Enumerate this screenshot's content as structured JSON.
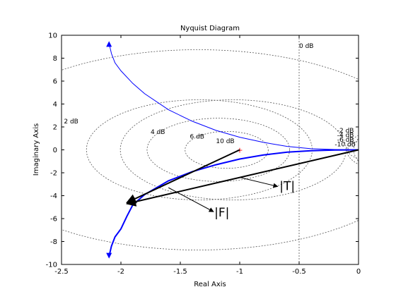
{
  "chart_data": {
    "type": "line",
    "title": "Nyquist Diagram",
    "xlabel": "Real Axis",
    "ylabel": "Imaginary Axis",
    "xlim": [
      -2.5,
      0
    ],
    "ylim": [
      -10,
      10
    ],
    "x_ticks": [
      "-2.5",
      "-2",
      "-1.5",
      "-1",
      "-0.5",
      "0"
    ],
    "y_ticks": [
      "-10",
      "-8",
      "-6",
      "-4",
      "-2",
      "0",
      "2",
      "4",
      "6",
      "8",
      "10"
    ],
    "series": [
      {
        "name": "",
        "color": "#0000ff",
        "points": [
          [
            -2.1,
            9.3
          ],
          [
            -2.08,
            8.4
          ],
          [
            -2.05,
            7.6
          ],
          [
            -2.0,
            6.9
          ],
          [
            -1.9,
            5.8
          ],
          [
            -1.8,
            4.9
          ],
          [
            -1.6,
            3.5
          ],
          [
            -1.4,
            2.5
          ],
          [
            -1.2,
            1.7
          ],
          [
            -1.0,
            1.1
          ],
          [
            -0.8,
            0.65
          ],
          [
            -0.6,
            0.3
          ],
          [
            -0.4,
            0.1
          ],
          [
            -0.2,
            0.03
          ],
          [
            0,
            0
          ]
        ]
      },
      {
        "name": "",
        "color": "#0000ff",
        "points": [
          [
            -2.1,
            -9.3
          ],
          [
            -2.08,
            -8.4
          ],
          [
            -2.05,
            -7.6
          ],
          [
            -2.0,
            -6.9
          ],
          [
            -1.95,
            -5.8
          ],
          [
            -1.9,
            -4.8
          ],
          [
            -1.8,
            -3.9
          ],
          [
            -1.6,
            -2.7
          ],
          [
            -1.4,
            -1.9
          ],
          [
            -1.2,
            -1.3
          ],
          [
            -1.0,
            -0.8
          ],
          [
            -0.8,
            -0.45
          ],
          [
            -0.6,
            -0.2
          ],
          [
            -0.4,
            -0.08
          ],
          [
            -0.2,
            -0.02
          ],
          [
            0,
            0
          ]
        ]
      }
    ],
    "grid_labels": [
      {
        "text": "0 dB",
        "x": -0.5,
        "y": 8.9
      },
      {
        "text": "2 dB",
        "x": -2.48,
        "y": 2.3
      },
      {
        "text": "4 dB",
        "x": -1.75,
        "y": 1.4
      },
      {
        "text": "6 dB",
        "x": -1.42,
        "y": 1.0
      },
      {
        "text": "10 dB",
        "x": -1.2,
        "y": 0.6
      },
      {
        "text": "-2 dB",
        "x": -0.18,
        "y": 1.5
      },
      {
        "text": "-4 dB",
        "x": -0.18,
        "y": 1.1
      },
      {
        "text": "-6 dB",
        "x": -0.18,
        "y": 0.7
      },
      {
        "text": "-10 dB",
        "x": -0.2,
        "y": 0.3
      }
    ],
    "vectors": [
      {
        "from": [
          -1.0,
          0
        ],
        "to": [
          -1.95,
          -4.6
        ]
      },
      {
        "from": [
          0,
          0
        ],
        "to": [
          -1.95,
          -4.7
        ]
      }
    ],
    "critical_point": [
      -1,
      0
    ],
    "annotations": [
      {
        "text": "|T|",
        "x": -0.6,
        "y": -3.5,
        "arrow_from": [
          -1.0,
          -2.4
        ],
        "arrow_to": [
          -0.68,
          -3.2
        ]
      },
      {
        "text": "|F|",
        "x": -1.15,
        "y": -5.8,
        "arrow_from": [
          -1.6,
          -3.3
        ],
        "arrow_to": [
          -1.22,
          -5.4
        ]
      }
    ],
    "grid": false
  }
}
